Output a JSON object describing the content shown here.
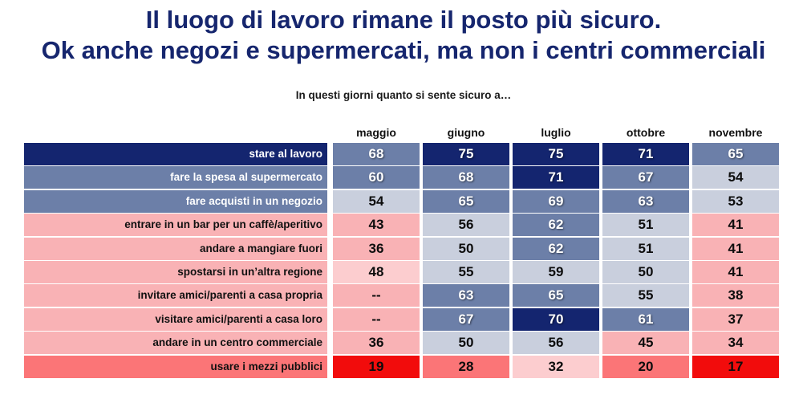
{
  "title_line1": "Il luogo di lavoro rimane il posto più sicuro.",
  "title_line2": "Ok anche negozi e supermercati, ma non i centri commerciali",
  "subtitle": "In questi giorni quanto si sente sicuro a…",
  "colors": {
    "title": "#16266e",
    "dark_blue": "#14256f",
    "mid_blue": "#6c7fa8",
    "light_blue": "#c9cfdd",
    "pink": "#f9b2b5",
    "light_pink": "#fccdcf",
    "salmon": "#fb7577",
    "red": "#f20c0c"
  },
  "chart_data": {
    "type": "table",
    "title": "In questi giorni quanto si sente sicuro a…",
    "columns": [
      "maggio",
      "giugno",
      "luglio",
      "ottobre",
      "novembre"
    ],
    "rows": [
      {
        "label": "stare al lavoro",
        "label_bg": "dark_blue",
        "values": [
          "68",
          "75",
          "75",
          "71",
          "65"
        ],
        "cell_bg": [
          "mid_blue",
          "dark_blue",
          "dark_blue",
          "dark_blue",
          "mid_blue"
        ]
      },
      {
        "label": "fare la spesa al supermercato",
        "label_bg": "mid_blue",
        "values": [
          "60",
          "68",
          "71",
          "67",
          "54"
        ],
        "cell_bg": [
          "mid_blue",
          "mid_blue",
          "dark_blue",
          "mid_blue",
          "light_blue"
        ]
      },
      {
        "label": "fare acquisti in un negozio",
        "label_bg": "mid_blue",
        "values": [
          "54",
          "65",
          "69",
          "63",
          "53"
        ],
        "cell_bg": [
          "light_blue",
          "mid_blue",
          "mid_blue",
          "mid_blue",
          "light_blue"
        ]
      },
      {
        "label": "entrare in un bar per un caffè/aperitivo",
        "label_bg": "pink",
        "values": [
          "43",
          "56",
          "62",
          "51",
          "41"
        ],
        "cell_bg": [
          "pink",
          "light_blue",
          "mid_blue",
          "light_blue",
          "pink"
        ]
      },
      {
        "label": "andare a mangiare fuori",
        "label_bg": "pink",
        "values": [
          "36",
          "50",
          "62",
          "51",
          "41"
        ],
        "cell_bg": [
          "pink",
          "light_blue",
          "mid_blue",
          "light_blue",
          "pink"
        ]
      },
      {
        "label": "spostarsi in un’altra regione",
        "label_bg": "pink",
        "values": [
          "48",
          "55",
          "59",
          "50",
          "41"
        ],
        "cell_bg": [
          "light_pink",
          "light_blue",
          "light_blue",
          "light_blue",
          "pink"
        ]
      },
      {
        "label": "invitare amici/parenti a casa propria",
        "label_bg": "pink",
        "values": [
          "--",
          "63",
          "65",
          "55",
          "38"
        ],
        "cell_bg": [
          "pink",
          "mid_blue",
          "mid_blue",
          "light_blue",
          "pink"
        ]
      },
      {
        "label": "visitare amici/parenti a casa loro",
        "label_bg": "pink",
        "values": [
          "--",
          "67",
          "70",
          "61",
          "37"
        ],
        "cell_bg": [
          "pink",
          "mid_blue",
          "dark_blue",
          "mid_blue",
          "pink"
        ]
      },
      {
        "label": "andare in un centro commerciale",
        "label_bg": "pink",
        "values": [
          "36",
          "50",
          "56",
          "45",
          "34"
        ],
        "cell_bg": [
          "pink",
          "light_blue",
          "light_blue",
          "pink",
          "pink"
        ]
      },
      {
        "label": "usare i mezzi pubblici",
        "label_bg": "salmon",
        "values": [
          "19",
          "28",
          "32",
          "20",
          "17"
        ],
        "cell_bg": [
          "red",
          "salmon",
          "light_pink",
          "salmon",
          "red"
        ]
      }
    ]
  }
}
